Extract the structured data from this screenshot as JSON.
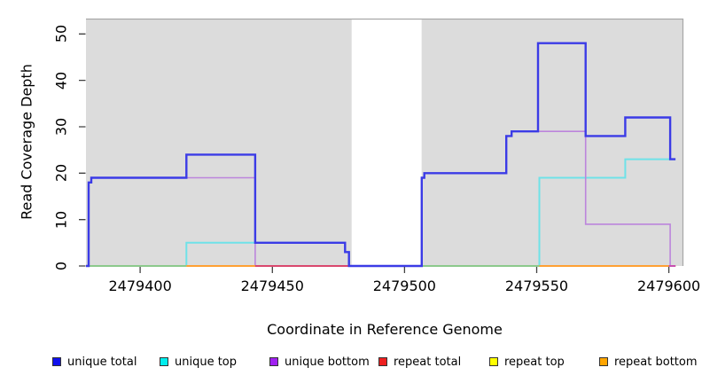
{
  "chart_data": {
    "type": "line",
    "subtype": "step",
    "title": "",
    "xlabel": "Coordinate in Reference Genome",
    "ylabel": "Read Coverage Depth",
    "xlim": [
      2479379.5,
      2479605.5
    ],
    "ylim": [
      0,
      53.3
    ],
    "x_ticks": [
      2479400,
      2479450,
      2479500,
      2479550,
      2479600
    ],
    "y_ticks": [
      0,
      10,
      20,
      30,
      40,
      50
    ],
    "plot_bg_color": "#DCDCDC",
    "plot_border_color": "#A8A8A8",
    "gap_region": {
      "x0": 2479480,
      "x1": 2479506.5,
      "color": "#FFFFFF"
    },
    "series": [
      {
        "name": "repeat total",
        "color": "#DD3333",
        "width": 1.5,
        "points": [
          [
            2479379.5,
            0
          ]
        ],
        "x_end": 2479602.5
      },
      {
        "name": "repeat top",
        "color": "#EEEE00",
        "width": 1.5,
        "points": [
          [
            2479379.5,
            0
          ]
        ],
        "x_end": 2479602.5
      },
      {
        "name": "repeat bottom",
        "color": "#FF9922",
        "width": 1.8,
        "points": [
          [
            2479379.5,
            0
          ]
        ],
        "x_end": 2479602.5
      },
      {
        "name": "unique top",
        "color": "#6FE2E8",
        "width": 2,
        "points": [
          [
            2479379.5,
            0
          ],
          [
            2479417.5,
            5
          ],
          [
            2479477.5,
            3
          ],
          [
            2479479,
            0
          ],
          [
            2479551,
            19
          ],
          [
            2479583.5,
            23
          ]
        ],
        "x_end": 2479602.5
      },
      {
        "name": "unique bottom",
        "color": "#BC85DC",
        "width": 1.6,
        "points": [
          [
            2479379.5,
            0
          ],
          [
            2479380.5,
            18
          ],
          [
            2479381.5,
            19
          ],
          [
            2479443.5,
            0
          ],
          [
            2479506.5,
            19
          ],
          [
            2479507.5,
            20
          ],
          [
            2479538.5,
            28
          ],
          [
            2479540.5,
            29
          ],
          [
            2479568.5,
            9
          ],
          [
            2479600.5,
            0
          ]
        ],
        "x_end": 2479602.5
      },
      {
        "name": "unique total",
        "color": "#3B3BE6",
        "width": 2.4,
        "on_top": true,
        "points": [
          [
            2479379.5,
            0
          ],
          [
            2479380.5,
            18
          ],
          [
            2479381.5,
            19
          ],
          [
            2479417.5,
            24
          ],
          [
            2479443.5,
            5
          ],
          [
            2479477.5,
            3
          ],
          [
            2479479,
            0
          ],
          [
            2479506.5,
            19
          ],
          [
            2479507.5,
            20
          ],
          [
            2479538.5,
            28
          ],
          [
            2479540.5,
            29
          ],
          [
            2479550.5,
            48
          ],
          [
            2479568.5,
            28
          ],
          [
            2479583.5,
            32
          ],
          [
            2479600.5,
            23
          ]
        ],
        "x_end": 2479602.5
      }
    ],
    "baseline_segments": [
      {
        "x0": 2479380.5,
        "x1": 2479417.5,
        "color": "#8CC98C"
      },
      {
        "x0": 2479417.5,
        "x1": 2479443.5,
        "color": "#FFA033"
      },
      {
        "x0": 2479443.5,
        "x1": 2479480,
        "color": "#D9486E"
      },
      {
        "x0": 2479506.5,
        "x1": 2479551,
        "color": "#8CC98C"
      },
      {
        "x0": 2479551,
        "x1": 2479600,
        "color": "#FFA033"
      },
      {
        "x0": 2479600,
        "x1": 2479602.5,
        "color": "#C850B0"
      }
    ],
    "legend": [
      {
        "label": "unique total",
        "color": "#1111EE"
      },
      {
        "label": "unique top",
        "color": "#00EEEE"
      },
      {
        "label": "unique bottom",
        "color": "#A020F0"
      },
      {
        "label": "repeat total",
        "color": "#EE2020"
      },
      {
        "label": "repeat top",
        "color": "#FFFF00"
      },
      {
        "label": "repeat bottom",
        "color": "#FFA500"
      }
    ]
  }
}
